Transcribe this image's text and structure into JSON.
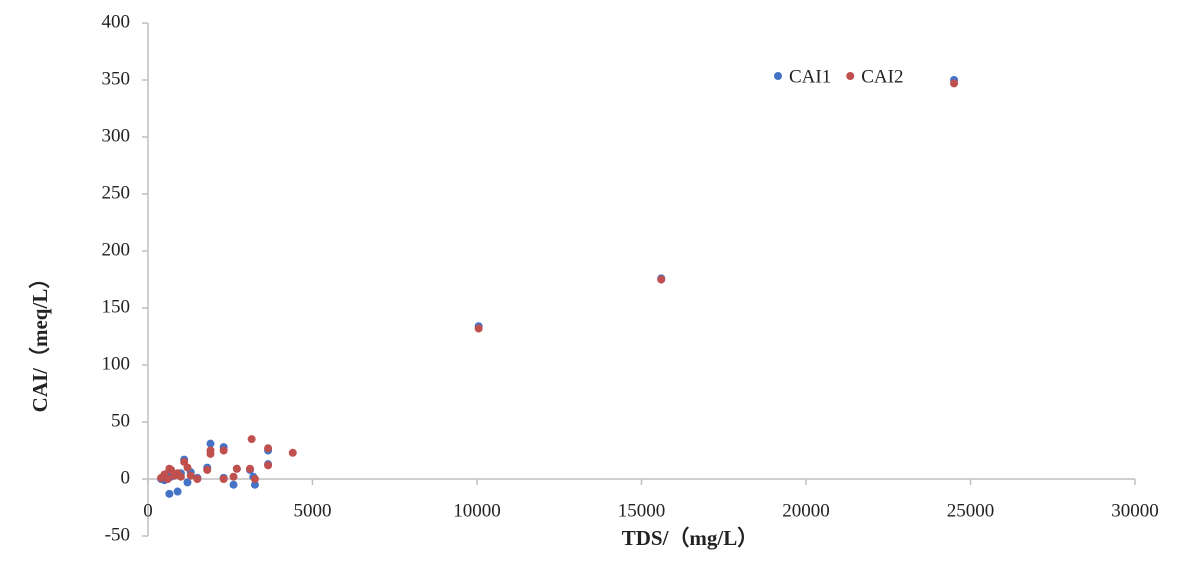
{
  "chart_data": {
    "type": "scatter",
    "x_label": "TDS/（mg/L）",
    "y_label": "CAI/（meq/L）",
    "xlim": [
      0,
      30000
    ],
    "xticks": [
      0,
      5000,
      10000,
      15000,
      20000,
      25000,
      30000
    ],
    "ylim": [
      -50,
      400
    ],
    "yticks": [
      -50,
      0,
      50,
      100,
      150,
      200,
      250,
      300,
      350,
      400
    ],
    "legend": "top-right",
    "series": [
      {
        "name": "CAI1",
        "color": "#4472c4",
        "x": [
          24500,
          15600,
          10050,
          1900,
          2300,
          3650,
          3650,
          1100,
          650,
          900,
          2600,
          3250,
          1200,
          500,
          400,
          700,
          800,
          1000,
          1500,
          1800,
          2700,
          3100,
          3200,
          2300,
          600,
          1300
        ],
        "values": [
          350,
          176,
          134,
          31,
          28,
          25,
          13,
          17,
          -13,
          -11,
          -5,
          -5,
          -3,
          -1,
          0,
          2,
          3,
          5,
          1,
          10,
          9,
          8,
          2,
          1,
          5,
          6
        ]
      },
      {
        "name": "CAI2",
        "color": "#c0504d",
        "x": [
          24500,
          15600,
          10050,
          1900,
          1900,
          2300,
          3150,
          3650,
          3650,
          4400,
          1100,
          650,
          900,
          2600,
          3250,
          1200,
          500,
          400,
          700,
          800,
          1000,
          1500,
          1800,
          2700,
          3100,
          2300,
          600,
          1300
        ],
        "values": [
          347,
          175,
          132,
          22,
          25,
          25,
          35,
          27,
          12,
          23,
          15,
          9,
          5,
          2,
          0,
          10,
          4,
          1,
          8,
          3,
          2,
          0,
          8,
          9,
          9,
          0,
          0,
          3
        ]
      }
    ]
  }
}
